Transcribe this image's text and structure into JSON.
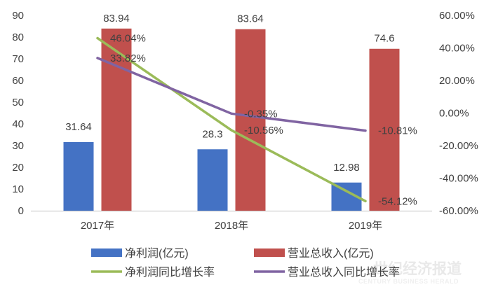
{
  "chart_data": {
    "type": "bar",
    "categories": [
      "2017年",
      "2018年",
      "2019年"
    ],
    "bar_series": [
      {
        "name": "净利润(亿元)",
        "values": [
          31.64,
          28.3,
          12.98
        ],
        "labels": [
          "31.64",
          "28.3",
          "12.98"
        ],
        "color": "#4472C4"
      },
      {
        "name": "营业总收入(亿元)",
        "values": [
          83.94,
          83.64,
          74.6
        ],
        "labels": [
          "83.94",
          "83.64",
          "74.6"
        ],
        "color": "#C0504D"
      }
    ],
    "line_series": [
      {
        "name": "净利润同比增长率",
        "values": [
          46.04,
          -10.56,
          -54.12
        ],
        "labels": [
          "46.04%",
          "-10.56%",
          "-54.12%"
        ],
        "color": "#9BBB59"
      },
      {
        "name": "营业总收入同比增长率",
        "values": [
          33.82,
          -0.35,
          -10.81
        ],
        "labels": [
          "33.82%",
          "-0.35%",
          "-10.81%"
        ],
        "color": "#8064A2"
      }
    ],
    "y_left": {
      "min": 0,
      "max": 90,
      "ticks": [
        "0",
        "10",
        "20",
        "30",
        "40",
        "50",
        "60",
        "70",
        "80",
        "90"
      ]
    },
    "y_right": {
      "min": -60,
      "max": 60,
      "ticks": [
        "-60.00%",
        "-40.00%",
        "-20.00%",
        "0.00%",
        "20.00%",
        "40.00%",
        "60.00%"
      ]
    },
    "grid": false,
    "legend": "bottom"
  },
  "watermark": {
    "text": "世纪经济报道",
    "subtext": "CENTURY BUSINESS HERALD"
  }
}
